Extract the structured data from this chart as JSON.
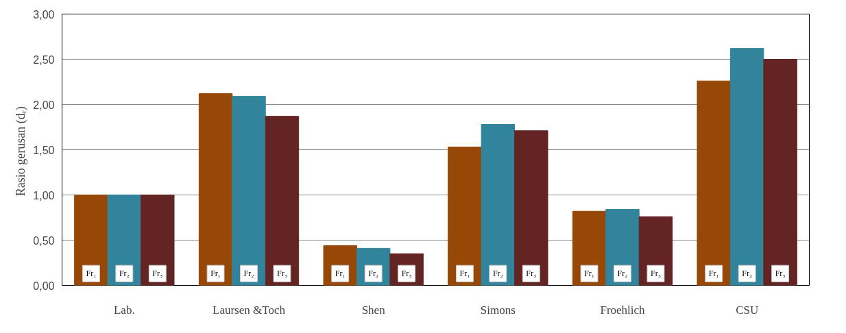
{
  "chart_data": {
    "type": "bar",
    "ylabel": "Rasio gerusan  (dᵣ)",
    "categories": [
      "Lab.",
      "Laursen &Toch",
      "Shen",
      "Simons",
      "Froehlich",
      "CSU"
    ],
    "series": [
      {
        "name": "Fr₁",
        "color": "#974706",
        "values": [
          1.0,
          2.12,
          0.44,
          1.53,
          0.82,
          2.26
        ]
      },
      {
        "name": "Fr₂",
        "color": "#31849b",
        "values": [
          1.0,
          2.09,
          0.41,
          1.78,
          0.84,
          2.62
        ]
      },
      {
        "name": "Fr₃",
        "color": "#632523",
        "values": [
          1.0,
          1.87,
          0.35,
          1.71,
          0.76,
          2.5
        ]
      }
    ],
    "ylim": [
      0,
      3
    ],
    "yticks": [
      {
        "value": 0,
        "label": "0,00"
      },
      {
        "value": 0.5,
        "label": "0,50"
      },
      {
        "value": 1,
        "label": "1,00"
      },
      {
        "value": 1.5,
        "label": "1,50"
      },
      {
        "value": 2,
        "label": "2,00"
      },
      {
        "value": 2.5,
        "label": "2,50"
      },
      {
        "value": 3,
        "label": "3,00"
      }
    ],
    "grid": "y"
  }
}
